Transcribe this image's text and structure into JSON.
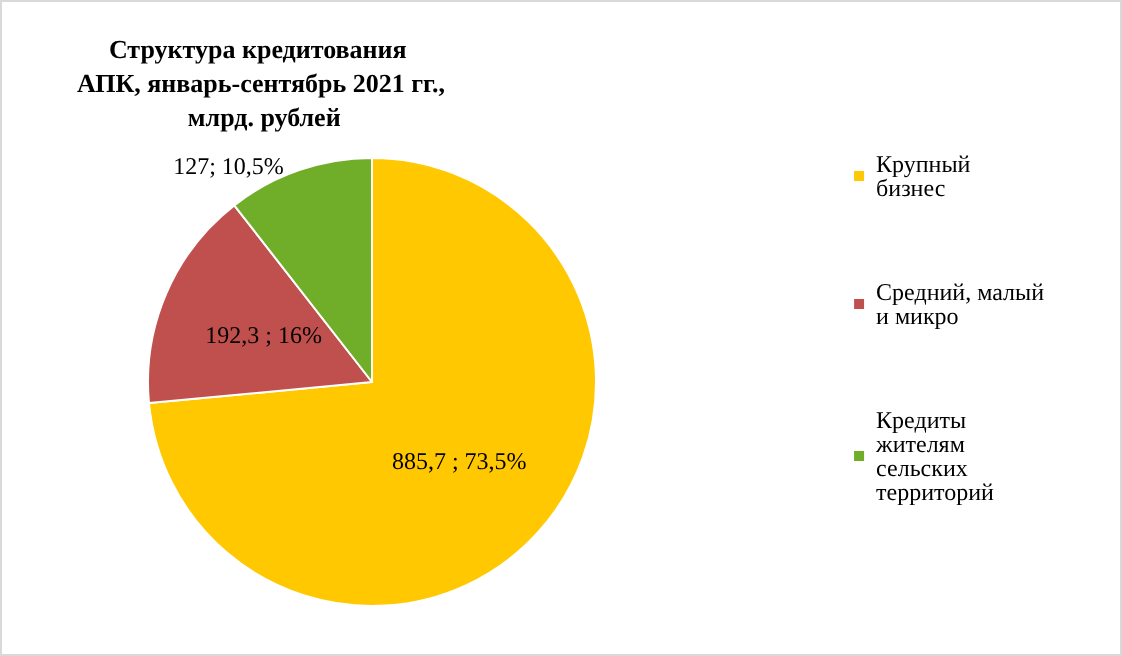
{
  "chart_data": {
    "type": "pie",
    "title": "Структура кредитования АПК, январь-сентябрь 2021 гг., млрд. рублей",
    "categories": [
      "Крупный  бизнес",
      "Средний, малый и микро",
      "Кредиты жителям сельских территорий"
    ],
    "values": [
      885.7,
      192.3,
      127
    ],
    "colors": [
      "#ffc800",
      "#c0504d",
      "#70ad29"
    ],
    "value_labels": [
      "885,7 ; 73,5%",
      "192,3 ; 16%",
      "127; 10,5%"
    ],
    "legend": "right"
  }
}
